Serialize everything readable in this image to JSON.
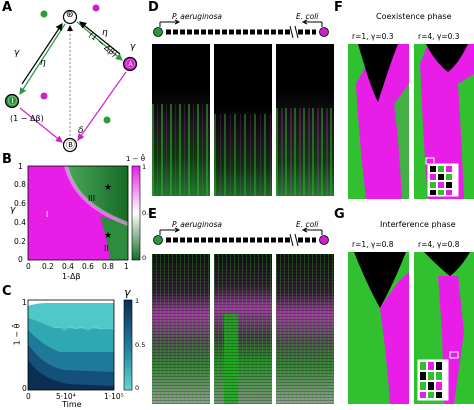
{
  "panels": {
    "a": "A",
    "b": "B",
    "c": "C",
    "d": "D",
    "e": "E",
    "f": "F",
    "g": "G"
  },
  "panel_a": {
    "top_node": "⊛",
    "bottom_node": "Ⓑ",
    "left_node": "Ⓘ",
    "right_node": "Ⓐ",
    "gamma_left": "γ",
    "eta_left": "η",
    "gamma_right": "γ",
    "eta_right": "η",
    "one_minus_delta_beta_top": "(1 − Δβ)",
    "one_minus_delta_beta_left": "(1 − Δβ)",
    "delta_bottom": "δ"
  },
  "panel_b": {
    "ylabel": "γ",
    "xlabel": "1-Δβ",
    "yticks": [
      "0",
      "0.2",
      "0.4",
      "0.6",
      "0.8",
      "1"
    ],
    "xticks": [
      "0",
      "0.2",
      "0.4",
      "0.6",
      "0.8",
      "1"
    ],
    "region_I": "I",
    "region_II": "II",
    "region_III": "III",
    "colorbar_title": "1 − θ̄",
    "colorbar_ticks": [
      "1",
      "0.5",
      "0"
    ],
    "colors": {
      "magenta": "#e81ee8",
      "green": "#1f8a34"
    }
  },
  "panel_c": {
    "ylabel": "1 − θ̄",
    "xlabel": "Time",
    "xticks": [
      "0",
      "5·10⁴",
      "1·10⁵"
    ],
    "yticks": [
      "0",
      "1"
    ],
    "colorbar_title": "γ",
    "colorbar_ticks": [
      "1",
      "0.5",
      "0"
    ]
  },
  "panel_d": {
    "left_label": "P. aeruginosa",
    "right_label": "E. coli"
  },
  "panel_e": {
    "left_label": "P. aeruginosa",
    "right_label": "E. coli"
  },
  "panel_f": {
    "title": "Coexistence phase",
    "left_caption": "r=1, γ=0.3",
    "right_caption": "r=4, γ=0.3"
  },
  "panel_g": {
    "title": "Interference phase",
    "left_caption": "r=1, γ=0.8",
    "right_caption": "r=4, γ=0.8"
  }
}
